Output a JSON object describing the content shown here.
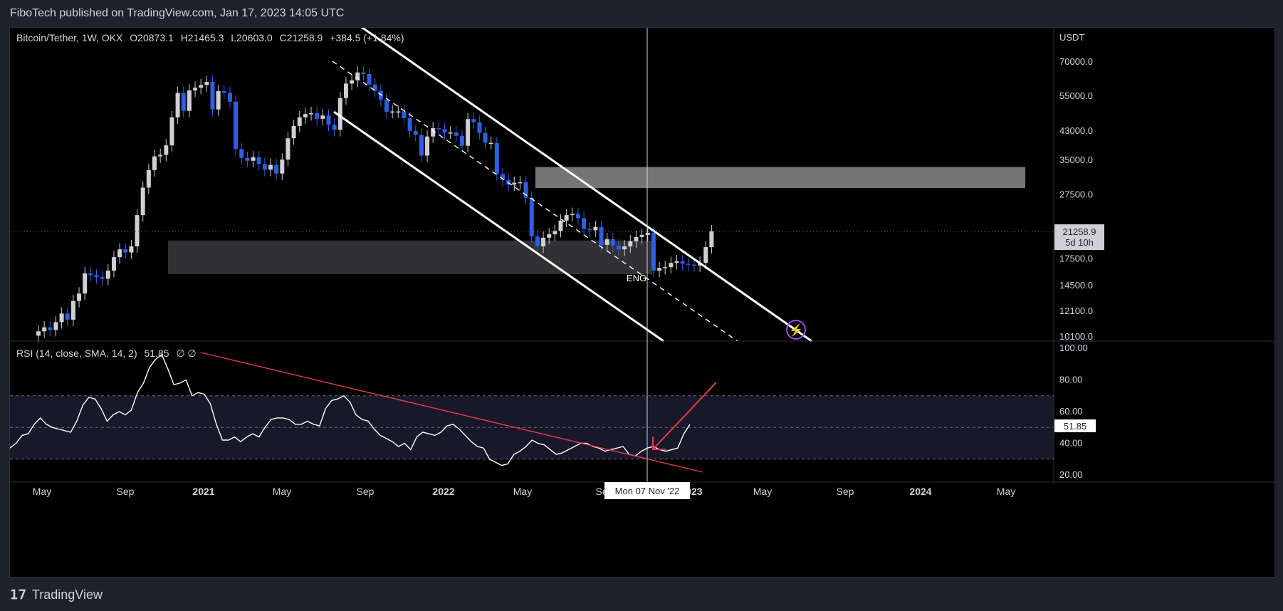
{
  "header": {
    "publisher_line": "FiboTech published on TradingView.com, Jan 17, 2023 14:05 UTC"
  },
  "footer": {
    "brand": "TradingView"
  },
  "colors": {
    "background": "#000000",
    "bull_candle": "#cfcfd4",
    "bear_candle": "#2f5fe0",
    "channel": "#ffffff",
    "rsi_line": "#ffffff",
    "rsi_trend": "#e03a4a",
    "arrow": "#e03a4a",
    "zone": "#8a8a8a"
  },
  "chart_data": [
    {
      "type": "candlestick",
      "title": "Bitcoin/Tether, 1W, OKX",
      "ohlc": {
        "open": "O20873.1",
        "high": "H21465.3",
        "low": "L20603.0",
        "close": "C21258.9",
        "change": "+384.5 (+1.84%)"
      },
      "currency": "USDT",
      "y_scale": "log",
      "y_ticks": [
        "70000.0",
        "55000.0",
        "43000.0",
        "35000.0",
        "27500.0",
        "17500.0",
        "14500.0",
        "12100.0",
        "10100.0"
      ],
      "last_price": {
        "value": "21258.9",
        "countdown": "5d 10h"
      },
      "annotation": "ENG",
      "candles_close": [
        10500,
        10800,
        10600,
        11200,
        11900,
        11400,
        13000,
        13700,
        15800,
        15600,
        15400,
        15200,
        16100,
        17700,
        18700,
        18300,
        19100,
        23800,
        28900,
        32700,
        36000,
        36400,
        38900,
        47400,
        56300,
        49600,
        57300,
        58400,
        59500,
        60800,
        50100,
        57000,
        56400,
        52900,
        37900,
        35600,
        34900,
        35800,
        34100,
        32800,
        33900,
        31900,
        35200,
        40900,
        44600,
        47400,
        48500,
        48800,
        46900,
        48000,
        45000,
        43400,
        54300,
        60100,
        61500,
        65000,
        64300,
        59700,
        57100,
        53700,
        49300,
        49400,
        49400,
        47100,
        43000,
        41900,
        36200,
        41400,
        43900,
        43600,
        42600,
        42600,
        41600,
        38800,
        46800,
        45800,
        42500,
        39600,
        39600,
        31800,
        30500,
        29500,
        29900,
        30000,
        26900,
        20500,
        19100,
        20300,
        20800,
        21300,
        22900,
        23800,
        24000,
        23300,
        21600,
        21400,
        21900,
        19300,
        20100,
        19200,
        18700,
        19100,
        19800,
        20400,
        20700,
        21000,
        16100,
        16400,
        16500,
        17000,
        17200,
        16900,
        16800,
        16700,
        17000,
        19000,
        21258.9
      ],
      "zones": [
        {
          "from": 28800,
          "to": 33400
        },
        {
          "from": 15700,
          "to": 19900
        }
      ],
      "x_ticks": [
        "May",
        "Sep",
        "2021",
        "May",
        "Sep",
        "2022",
        "May",
        "Sep",
        "Nov",
        "2023",
        "May",
        "Sep",
        "2024",
        "May"
      ],
      "crosshair_date": "Mon 07 Nov '22"
    },
    {
      "type": "line",
      "title": "RSI (14, close, SMA, 14, 2)",
      "value": "51.85",
      "flags": "∅ ∅",
      "y_ticks": [
        "100.00",
        "80.00",
        "60.00",
        "40.00",
        "20.00"
      ],
      "bands": {
        "upper": 70,
        "middle": 50,
        "lower": 30
      },
      "values": [
        37,
        40,
        45,
        46,
        52,
        56,
        52,
        50,
        49,
        48,
        47,
        54,
        64,
        69,
        68,
        62,
        54,
        58,
        60,
        58,
        61,
        72,
        78,
        88,
        93,
        96,
        87,
        77,
        78,
        80,
        70,
        72,
        71,
        65,
        52,
        42,
        42,
        44,
        41,
        44,
        46,
        44,
        50,
        55,
        56,
        56,
        55,
        52,
        52,
        54,
        52,
        51,
        62,
        67,
        68,
        70,
        66,
        58,
        55,
        54,
        49,
        45,
        43,
        41,
        38,
        40,
        36,
        44,
        47,
        46,
        45,
        47,
        51,
        52,
        49,
        45,
        41,
        38,
        37,
        30,
        28,
        26,
        27,
        33,
        35,
        38,
        42,
        40,
        39,
        36,
        33,
        34,
        36,
        38,
        40,
        40,
        38,
        37,
        35,
        36,
        37,
        38,
        33,
        32,
        35,
        37,
        38,
        36,
        35,
        36,
        37,
        46,
        51.85
      ]
    }
  ]
}
